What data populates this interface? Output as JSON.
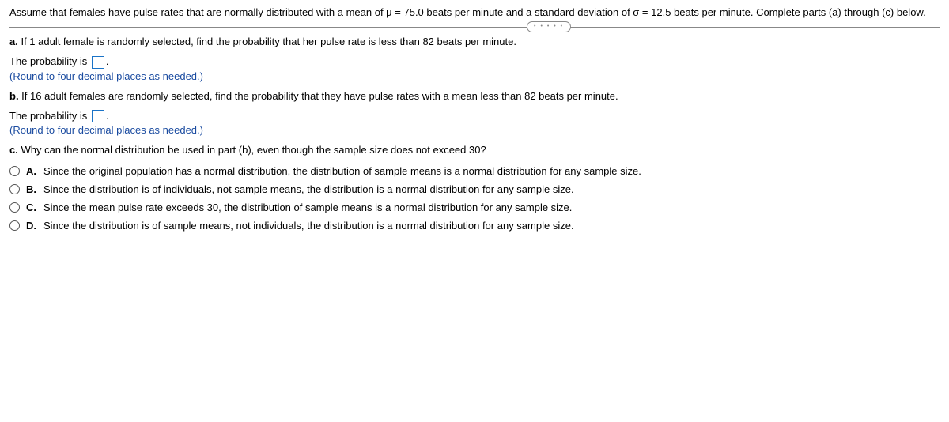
{
  "intro": "Assume that females have pulse rates that are normally distributed with a mean of μ = 75.0 beats per minute and a standard deviation of σ = 12.5 beats per minute. Complete parts (a) through (c) below.",
  "divider_dots": "• • • • •",
  "part_a": {
    "label": "a.",
    "text": " If 1 adult female is randomly selected, find the probability that her pulse rate is less than 82 beats per minute.",
    "answer_prefix": "The probability is ",
    "answer_suffix": ".",
    "hint": "(Round to four decimal places as needed.)"
  },
  "part_b": {
    "label": "b.",
    "text": " If 16 adult females are randomly selected, find the probability that they have pulse rates with a mean less than 82 beats per minute.",
    "answer_prefix": "The probability is ",
    "answer_suffix": ".",
    "hint": "(Round to four decimal places as needed.)"
  },
  "part_c": {
    "label": "c.",
    "text": " Why can the normal distribution be used in part (b), even though the sample size does not exceed 30?",
    "options": [
      {
        "label": "A.",
        "text": "Since the original population has a normal distribution, the distribution of sample means is a normal distribution for any sample size."
      },
      {
        "label": "B.",
        "text": "Since the distribution is of individuals, not sample means, the distribution is a normal distribution for any sample size."
      },
      {
        "label": "C.",
        "text": "Since the mean pulse rate exceeds 30, the distribution of sample means is a normal distribution for any sample size."
      },
      {
        "label": "D.",
        "text": "Since the distribution is of sample means, not individuals, the distribution is a normal distribution for any sample size."
      }
    ]
  }
}
